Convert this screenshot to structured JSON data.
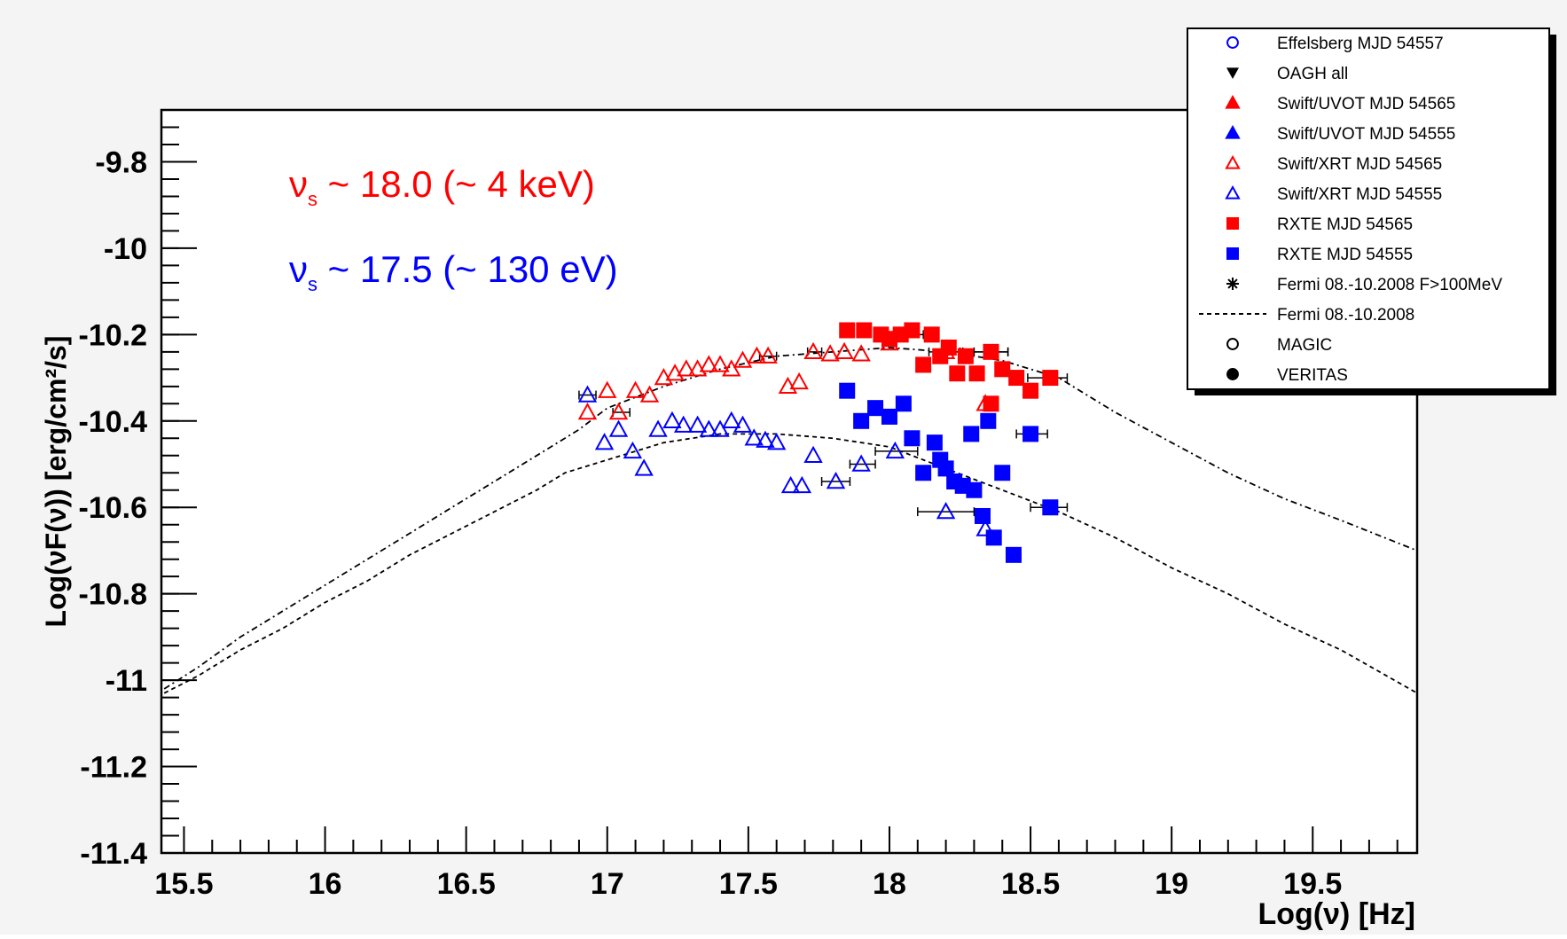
{
  "chart_data": {
    "type": "scatter",
    "title": "",
    "xlabel": "Log(ν) [Hz]",
    "ylabel": "Log(νF(ν)) [erg/cm²/s]",
    "xlim": [
      15.42,
      19.87
    ],
    "ylim": [
      -11.4,
      -9.68
    ],
    "grid": false,
    "legend_position": "top-right",
    "x_ticks": [
      "15.5",
      "16",
      "16.5",
      "17",
      "17.5",
      "18",
      "18.5",
      "19",
      "19.5"
    ],
    "y_ticks": [
      "-9.8",
      "-10",
      "-10.2",
      "-10.4",
      "-10.6",
      "-10.8",
      "-11",
      "-11.2",
      "-11.4"
    ],
    "annotations": [
      {
        "text": "νs ~ 18.0 (~ 4 keV)",
        "main": "ν",
        "sub": "s",
        "rest": " ~ 18.0 (~ 4 keV)",
        "color": "#ff0000"
      },
      {
        "text": "νs ~ 17.5 (~ 130 eV)",
        "main": "ν",
        "sub": "s",
        "rest": " ~ 17.5 (~ 130 eV)",
        "color": "#0000ff"
      }
    ],
    "legend": [
      {
        "label": "Effelsberg MJD 54557",
        "marker": "circle-open",
        "color": "#0000ff"
      },
      {
        "label": "OAGH all",
        "marker": "triangle-down",
        "color": "#000000"
      },
      {
        "label": "Swift/UVOT MJD 54565",
        "marker": "triangle",
        "color": "#ff0000"
      },
      {
        "label": "Swift/UVOT MJD 54555",
        "marker": "triangle",
        "color": "#0000ff"
      },
      {
        "label": "Swift/XRT MJD 54565",
        "marker": "triangle-open",
        "color": "#ff0000"
      },
      {
        "label": "Swift/XRT MJD 54555",
        "marker": "triangle-open",
        "color": "#0000ff"
      },
      {
        "label": "RXTE  MJD 54565",
        "marker": "square",
        "color": "#ff0000"
      },
      {
        "label": "RXTE  MJD 54555",
        "marker": "square",
        "color": "#0000ff"
      },
      {
        "label": "Fermi 08.-10.2008 F>100MeV",
        "marker": "star",
        "color": "#000000"
      },
      {
        "label": "Fermi 08.-10.2008",
        "marker": "dashed-line",
        "color": "#000000"
      },
      {
        "label": "MAGIC",
        "marker": "circle-open",
        "color": "#000000"
      },
      {
        "label": "VERITAS",
        "marker": "circle",
        "color": "#000000"
      }
    ],
    "series": [
      {
        "name": "Swift/XRT MJD 54565",
        "marker": "triangle-open",
        "color": "#ff0000",
        "points": [
          [
            16.93,
            -10.38
          ],
          [
            17.0,
            -10.33
          ],
          [
            17.04,
            -10.38
          ],
          [
            17.1,
            -10.33
          ],
          [
            17.15,
            -10.34
          ],
          [
            17.2,
            -10.3
          ],
          [
            17.24,
            -10.29
          ],
          [
            17.28,
            -10.28
          ],
          [
            17.32,
            -10.28
          ],
          [
            17.36,
            -10.27
          ],
          [
            17.4,
            -10.27
          ],
          [
            17.44,
            -10.28
          ],
          [
            17.48,
            -10.26
          ],
          [
            17.53,
            -10.25
          ],
          [
            17.57,
            -10.25
          ],
          [
            17.64,
            -10.32
          ],
          [
            17.68,
            -10.31
          ],
          [
            17.73,
            -10.24
          ],
          [
            17.79,
            -10.245
          ],
          [
            17.84,
            -10.24
          ],
          [
            17.9,
            -10.245
          ],
          [
            18.0,
            -10.22
          ],
          [
            18.2,
            -10.24
          ],
          [
            18.34,
            -10.36
          ]
        ],
        "xerr": [
          [
            17.02,
            17.08
          ],
          [
            17.54,
            17.6
          ],
          [
            17.71,
            17.76
          ],
          [
            18.14,
            18.26
          ]
        ]
      },
      {
        "name": "Swift/XRT MJD 54555",
        "marker": "triangle-open",
        "color": "#0000ff",
        "points": [
          [
            16.93,
            -10.34
          ],
          [
            16.99,
            -10.45
          ],
          [
            17.04,
            -10.42
          ],
          [
            17.09,
            -10.47
          ],
          [
            17.13,
            -10.51
          ],
          [
            17.18,
            -10.42
          ],
          [
            17.23,
            -10.4
          ],
          [
            17.27,
            -10.41
          ],
          [
            17.32,
            -10.41
          ],
          [
            17.36,
            -10.42
          ],
          [
            17.4,
            -10.42
          ],
          [
            17.44,
            -10.4
          ],
          [
            17.48,
            -10.41
          ],
          [
            17.52,
            -10.44
          ],
          [
            17.56,
            -10.445
          ],
          [
            17.6,
            -10.45
          ],
          [
            17.65,
            -10.55
          ],
          [
            17.69,
            -10.55
          ],
          [
            17.73,
            -10.48
          ],
          [
            17.81,
            -10.54
          ],
          [
            17.9,
            -10.5
          ],
          [
            18.02,
            -10.47
          ],
          [
            18.2,
            -10.61
          ],
          [
            18.34,
            -10.65
          ]
        ],
        "xerr": [
          [
            16.9,
            16.96
          ],
          [
            17.76,
            17.86
          ],
          [
            17.86,
            17.95
          ],
          [
            17.95,
            18.1
          ],
          [
            18.1,
            18.3
          ]
        ]
      },
      {
        "name": "RXTE  MJD 54565",
        "marker": "square",
        "color": "#ff0000",
        "points": [
          [
            17.85,
            -10.19
          ],
          [
            17.91,
            -10.19
          ],
          [
            17.97,
            -10.2
          ],
          [
            18.0,
            -10.21
          ],
          [
            18.04,
            -10.2
          ],
          [
            18.08,
            -10.19
          ],
          [
            18.12,
            -10.27
          ],
          [
            18.15,
            -10.2
          ],
          [
            18.18,
            -10.25
          ],
          [
            18.21,
            -10.23
          ],
          [
            18.24,
            -10.29
          ],
          [
            18.27,
            -10.25
          ],
          [
            18.31,
            -10.29
          ],
          [
            18.36,
            -10.24
          ],
          [
            18.4,
            -10.28
          ],
          [
            18.45,
            -10.3
          ],
          [
            18.5,
            -10.33
          ],
          [
            18.57,
            -10.3
          ],
          [
            18.36,
            -10.36
          ]
        ],
        "xerr": [
          [
            17.98,
            18.12
          ],
          [
            18.25,
            18.42
          ],
          [
            18.49,
            18.63
          ],
          [
            18.3,
            18.42
          ]
        ]
      },
      {
        "name": "RXTE  MJD 54555",
        "marker": "square",
        "color": "#0000ff",
        "points": [
          [
            17.85,
            -10.33
          ],
          [
            17.9,
            -10.4
          ],
          [
            17.95,
            -10.37
          ],
          [
            18.0,
            -10.39
          ],
          [
            18.05,
            -10.36
          ],
          [
            18.08,
            -10.44
          ],
          [
            18.12,
            -10.52
          ],
          [
            18.16,
            -10.45
          ],
          [
            18.18,
            -10.49
          ],
          [
            18.2,
            -10.51
          ],
          [
            18.23,
            -10.54
          ],
          [
            18.26,
            -10.55
          ],
          [
            18.3,
            -10.56
          ],
          [
            18.33,
            -10.62
          ],
          [
            18.37,
            -10.67
          ],
          [
            18.44,
            -10.71
          ],
          [
            18.35,
            -10.4
          ],
          [
            18.29,
            -10.43
          ],
          [
            18.4,
            -10.52
          ],
          [
            18.5,
            -10.43
          ],
          [
            18.57,
            -10.6
          ]
        ],
        "xerr": [
          [
            18.45,
            18.56
          ],
          [
            18.5,
            18.63
          ]
        ]
      },
      {
        "name": "Fermi 08.-10.2008",
        "style": "dashed",
        "color": "#000000",
        "points": [
          [
            15.43,
            -11.03
          ],
          [
            15.55,
            -10.99
          ],
          [
            15.7,
            -10.93
          ],
          [
            15.85,
            -10.88
          ],
          [
            16.0,
            -10.82
          ],
          [
            16.15,
            -10.77
          ],
          [
            16.3,
            -10.71
          ],
          [
            16.45,
            -10.66
          ],
          [
            16.6,
            -10.61
          ],
          [
            16.75,
            -10.56
          ],
          [
            16.85,
            -10.52
          ],
          [
            17.0,
            -10.49
          ],
          [
            17.2,
            -10.45
          ],
          [
            17.4,
            -10.43
          ],
          [
            17.6,
            -10.43
          ],
          [
            17.8,
            -10.44
          ],
          [
            18.0,
            -10.46
          ],
          [
            18.2,
            -10.51
          ],
          [
            18.4,
            -10.56
          ],
          [
            18.6,
            -10.61
          ],
          [
            18.8,
            -10.67
          ],
          [
            19.0,
            -10.74
          ],
          [
            19.2,
            -10.8
          ],
          [
            19.4,
            -10.87
          ],
          [
            19.6,
            -10.93
          ],
          [
            19.87,
            -11.03
          ]
        ]
      },
      {
        "name": "",
        "style": "dash-dot",
        "color": "#000000",
        "points": [
          [
            15.43,
            -11.02
          ],
          [
            15.55,
            -10.97
          ],
          [
            15.7,
            -10.9
          ],
          [
            15.85,
            -10.84
          ],
          [
            16.0,
            -10.78
          ],
          [
            16.15,
            -10.72
          ],
          [
            16.3,
            -10.66
          ],
          [
            16.45,
            -10.6
          ],
          [
            16.6,
            -10.54
          ],
          [
            16.75,
            -10.48
          ],
          [
            16.9,
            -10.42
          ],
          [
            17.0,
            -10.37
          ],
          [
            17.2,
            -10.32
          ],
          [
            17.4,
            -10.28
          ],
          [
            17.6,
            -10.25
          ],
          [
            17.8,
            -10.24
          ],
          [
            18.0,
            -10.23
          ],
          [
            18.2,
            -10.24
          ],
          [
            18.4,
            -10.26
          ],
          [
            18.6,
            -10.3
          ],
          [
            18.8,
            -10.38
          ],
          [
            19.0,
            -10.45
          ],
          [
            19.2,
            -10.52
          ],
          [
            19.4,
            -10.58
          ],
          [
            19.6,
            -10.63
          ],
          [
            19.87,
            -10.7
          ]
        ]
      }
    ]
  }
}
